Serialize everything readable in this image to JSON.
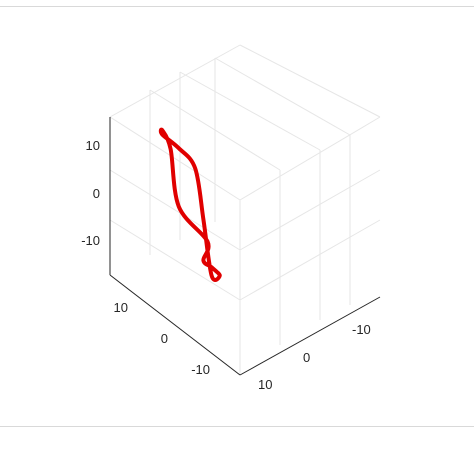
{
  "chart_data": {
    "type": "line",
    "title": "",
    "xlabel": "",
    "ylabel": "",
    "zlabel": "",
    "grid": true,
    "view": "3-D isometric",
    "ticks": {
      "z": [
        "10",
        "0",
        "-10"
      ],
      "y": [
        "10",
        "0",
        "-10"
      ],
      "x": [
        "-10",
        "0",
        "10"
      ]
    },
    "series": [
      {
        "color": "#e00000",
        "closed": true,
        "points": [
          {
            "x": 10,
            "y": 15,
            "z": 5
          },
          {
            "x": 6,
            "y": 18,
            "z": 12
          },
          {
            "x": 0,
            "y": 14,
            "z": 20
          },
          {
            "x": -8,
            "y": 8,
            "z": 18
          },
          {
            "x": -14,
            "y": 2,
            "z": 12
          },
          {
            "x": -18,
            "y": -6,
            "z": 4
          },
          {
            "x": -18,
            "y": -10,
            "z": -2
          },
          {
            "x": -16,
            "y": -10,
            "z": -12
          },
          {
            "x": -8,
            "y": -4,
            "z": -18
          },
          {
            "x": 0,
            "y": 2,
            "z": -12
          },
          {
            "x": 4,
            "y": 8,
            "z": -6
          },
          {
            "x": 6,
            "y": 12,
            "z": -2
          }
        ]
      }
    ]
  }
}
